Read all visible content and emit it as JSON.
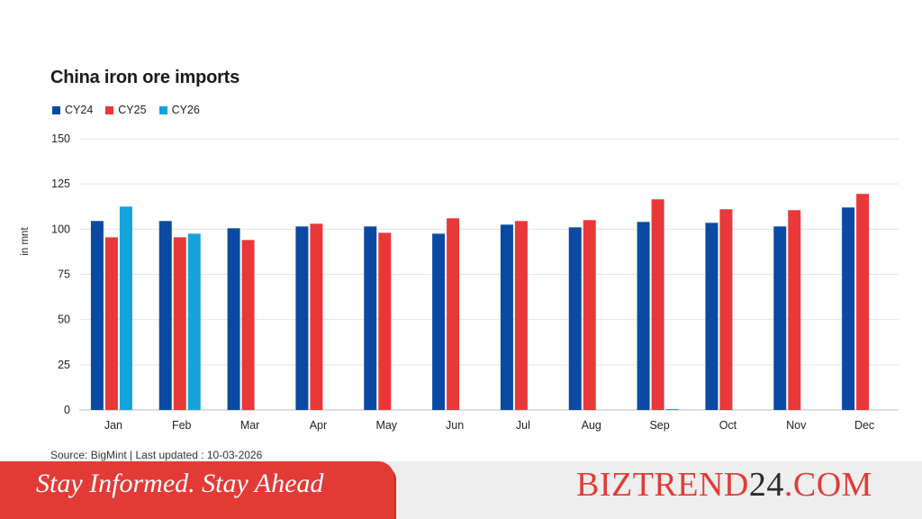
{
  "colors": {
    "cy24": "#0b4aa2",
    "cy25": "#e8383a",
    "cy26": "#14a3dc",
    "grid": "#e5e5e5",
    "banner": "#e23b36",
    "brand_red": "#e23b36",
    "brand_dark": "#2a2a2a"
  },
  "chart_data": {
    "type": "bar",
    "title": "China iron ore imports",
    "ylabel": "in mnt",
    "xlabel": "",
    "ylim": [
      0,
      150
    ],
    "yticks": [
      0,
      25,
      50,
      75,
      100,
      125,
      150
    ],
    "grid": true,
    "legend_position": "top-left",
    "categories": [
      "Jan",
      "Feb",
      "Mar",
      "Apr",
      "May",
      "Jun",
      "Jul",
      "Aug",
      "Sep",
      "Oct",
      "Nov",
      "Dec"
    ],
    "series": [
      {
        "name": "CY24",
        "color": "#0b4aa2",
        "values": [
          104.5,
          104.5,
          100.5,
          101.5,
          101.5,
          97.5,
          102.5,
          101,
          104,
          103.5,
          101.5,
          112
        ]
      },
      {
        "name": "CY25",
        "color": "#e8383a",
        "values": [
          95.5,
          95.5,
          94,
          103,
          98,
          106,
          104.5,
          105,
          116.5,
          111,
          110.5,
          119.5
        ]
      },
      {
        "name": "CY26",
        "color": "#14a3dc",
        "values": [
          112.5,
          97.5,
          null,
          null,
          null,
          null,
          null,
          null,
          0.5,
          null,
          null,
          null
        ]
      }
    ],
    "source": "Source: BigMint | Last updated : 10-03-2026"
  },
  "footer": {
    "slogan": "Stay Informed. Stay Ahead",
    "brand_part1": "BIZTREND",
    "brand_part2": "24",
    "brand_part3": ".COM"
  }
}
